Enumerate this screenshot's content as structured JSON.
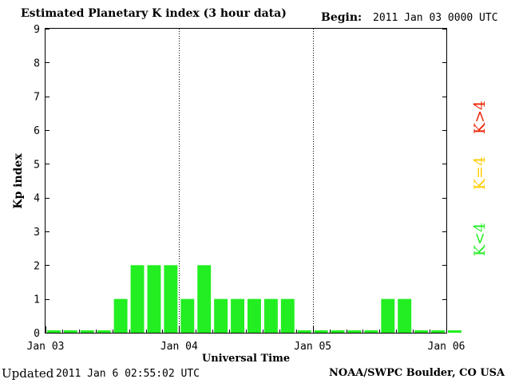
{
  "header": {
    "title": "Estimated Planetary K index (3 hour data)",
    "begin_label": "Begin:",
    "begin_value": "2011 Jan 03 0000 UTC"
  },
  "footer": {
    "updated_label": "Updated",
    "updated_value": "2011 Jan  6 02:55:02 UTC",
    "credit": "NOAA/SWPC Boulder, CO USA"
  },
  "legend": {
    "items": [
      {
        "label": "K<4",
        "color": "#22ee22"
      },
      {
        "label": "K=4",
        "color": "#ffcc00"
      },
      {
        "label": "K>4",
        "color": "#ee2200"
      }
    ]
  },
  "chart_data": {
    "type": "bar",
    "title": "Estimated Planetary K index (3 hour data)",
    "xlabel": "Universal Time",
    "ylabel": "Kp index",
    "ylim": [
      0,
      9
    ],
    "yticks": [
      0,
      1,
      2,
      3,
      4,
      5,
      6,
      7,
      8,
      9
    ],
    "x_tick_labels": [
      "Jan 03",
      "Jan 04",
      "Jan 05",
      "Jan 06"
    ],
    "interval_hours": 3,
    "values": [
      0,
      0,
      0,
      0,
      1,
      2,
      2,
      2,
      1,
      2,
      1,
      1,
      1,
      1,
      1,
      0,
      0,
      0,
      0,
      0,
      1,
      1,
      0,
      0,
      0
    ],
    "bar_color": "#22ee22",
    "day_separators": "dotted",
    "grid": false
  }
}
